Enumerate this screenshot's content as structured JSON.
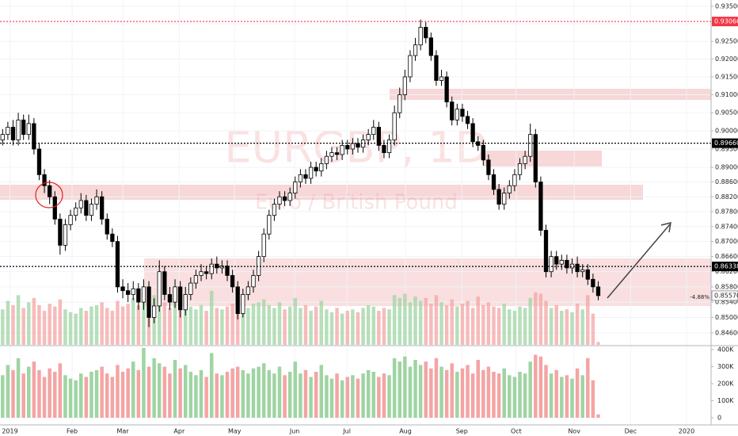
{
  "chart_data": {
    "type": "candlestick",
    "symbol": "EURGBP, 1D",
    "description": "Euro / British Pound",
    "log": true,
    "grid": true,
    "xlim": [
      -0.5,
      135.6
    ],
    "xticks": [
      {
        "value": 1.4,
        "label": "2019"
      },
      {
        "value": 13.3,
        "label": "Feb"
      },
      {
        "value": 23,
        "label": "Mar"
      },
      {
        "value": 33.8,
        "label": "Apr"
      },
      {
        "value": 44.4,
        "label": "May"
      },
      {
        "value": 55.9,
        "label": "Jun"
      },
      {
        "value": 65.9,
        "label": "Jul"
      },
      {
        "value": 77.1,
        "label": "Aug"
      },
      {
        "value": 87.9,
        "label": "Sep"
      },
      {
        "value": 98.3,
        "label": "Oct"
      },
      {
        "value": 109.4,
        "label": "Nov"
      },
      {
        "value": 120.2,
        "label": "Dec"
      },
      {
        "value": 130.9,
        "label": "2020"
      }
    ],
    "ylim": [
      0.8429,
      0.9368
    ],
    "yticks": [
      {
        "value": 0.846,
        "label": "0.84600"
      },
      {
        "value": 0.85,
        "label": "0.85000"
      },
      {
        "value": 0.854,
        "label": "0.85400"
      },
      {
        "value": 0.858,
        "label": "0.85800"
      },
      {
        "value": 0.862,
        "label": "0.86200"
      },
      {
        "value": 0.866,
        "label": "0.86600"
      },
      {
        "value": 0.87,
        "label": "0.87000"
      },
      {
        "value": 0.874,
        "label": "0.87400"
      },
      {
        "value": 0.878,
        "label": "0.87800"
      },
      {
        "value": 0.882,
        "label": "0.88200"
      },
      {
        "value": 0.886,
        "label": "0.88600"
      },
      {
        "value": 0.89,
        "label": "0.89000"
      },
      {
        "value": 0.895,
        "label": "0.89500"
      },
      {
        "value": 0.9,
        "label": "0.90000"
      },
      {
        "value": 0.905,
        "label": "0.90500"
      },
      {
        "value": 0.91,
        "label": "0.91000"
      },
      {
        "value": 0.915,
        "label": "0.91500"
      },
      {
        "value": 0.92,
        "label": "0.92000"
      },
      {
        "value": 0.925,
        "label": "0.92500"
      },
      {
        "value": 0.93,
        "label": "0.93000"
      },
      {
        "value": 0.935,
        "label": "0.93500"
      }
    ],
    "up_color": "#ffffff",
    "down_color": "#000000",
    "volume_up_color": "#9fd4a3",
    "volume_down_color": "#f4a4a4",
    "open": [
      0.8975,
      0.899,
      0.901,
      0.8975,
      0.903,
      0.899,
      0.902,
      0.895,
      0.888,
      0.885,
      0.882,
      0.876,
      0.869,
      0.8745,
      0.877,
      0.879,
      0.881,
      0.877,
      0.88,
      0.882,
      0.876,
      0.872,
      0.87,
      0.858,
      0.857,
      0.856,
      0.8575,
      0.854,
      0.858,
      0.85,
      0.853,
      0.862,
      0.856,
      0.854,
      0.858,
      0.852,
      0.856,
      0.859,
      0.861,
      0.862,
      0.8615,
      0.864,
      0.863,
      0.8635,
      0.861,
      0.858,
      0.851,
      0.856,
      0.858,
      0.861,
      0.866,
      0.872,
      0.877,
      0.88,
      0.882,
      0.881,
      0.883,
      0.886,
      0.888,
      0.887,
      0.89,
      0.889,
      0.891,
      0.893,
      0.894,
      0.8935,
      0.896,
      0.895,
      0.8965,
      0.8955,
      0.8975,
      0.899,
      0.901,
      0.896,
      0.894,
      0.8975,
      0.905,
      0.91,
      0.915,
      0.921,
      0.924,
      0.929,
      0.926,
      0.921,
      0.914,
      0.915,
      0.908,
      0.903,
      0.906,
      0.904,
      0.902,
      0.897,
      0.896,
      0.892,
      0.888,
      0.884,
      0.88,
      0.883,
      0.885,
      0.888,
      0.891,
      0.893,
      0.899,
      0.886,
      0.873,
      0.862,
      0.866,
      0.864,
      0.865,
      0.863,
      0.864,
      0.862,
      0.8625,
      0.86,
      0.858
    ],
    "high": [
      0.9005,
      0.9025,
      0.903,
      0.905,
      0.9045,
      0.9045,
      0.9035,
      0.8965,
      0.8895,
      0.8865,
      0.8835,
      0.8775,
      0.876,
      0.8785,
      0.8805,
      0.883,
      0.8825,
      0.8815,
      0.884,
      0.8835,
      0.8775,
      0.8735,
      0.8715,
      0.86,
      0.859,
      0.8595,
      0.859,
      0.86,
      0.8595,
      0.855,
      0.865,
      0.8635,
      0.858,
      0.86,
      0.8595,
      0.858,
      0.8605,
      0.8625,
      0.864,
      0.8635,
      0.8655,
      0.866,
      0.865,
      0.865,
      0.8625,
      0.8595,
      0.8575,
      0.8595,
      0.8625,
      0.8675,
      0.8735,
      0.8785,
      0.8815,
      0.8835,
      0.8835,
      0.8845,
      0.8875,
      0.8895,
      0.8895,
      0.8915,
      0.8915,
      0.8925,
      0.8945,
      0.8955,
      0.8955,
      0.8975,
      0.8975,
      0.898,
      0.898,
      0.899,
      0.9005,
      0.903,
      0.9025,
      0.8975,
      0.899,
      0.907,
      0.912,
      0.917,
      0.9225,
      0.926,
      0.9312,
      0.9305,
      0.9275,
      0.9225,
      0.917,
      0.9165,
      0.9095,
      0.9075,
      0.9075,
      0.9055,
      0.9035,
      0.8985,
      0.8975,
      0.8935,
      0.8895,
      0.8855,
      0.8845,
      0.8865,
      0.8895,
      0.8925,
      0.8945,
      0.902,
      0.9005,
      0.8875,
      0.8745,
      0.8675,
      0.8675,
      0.8665,
      0.8665,
      0.8655,
      0.866,
      0.864,
      0.864,
      0.8615,
      0.8595
    ],
    "low": [
      0.896,
      0.8975,
      0.896,
      0.896,
      0.8975,
      0.8975,
      0.8935,
      0.8865,
      0.883,
      0.88,
      0.8745,
      0.8665,
      0.8675,
      0.873,
      0.8755,
      0.8775,
      0.8755,
      0.8755,
      0.8785,
      0.8745,
      0.8705,
      0.8685,
      0.8565,
      0.855,
      0.854,
      0.8545,
      0.852,
      0.852,
      0.8475,
      0.8485,
      0.8515,
      0.8545,
      0.852,
      0.8525,
      0.85,
      0.8505,
      0.8545,
      0.8575,
      0.8595,
      0.86,
      0.86,
      0.8615,
      0.8615,
      0.8595,
      0.8565,
      0.8495,
      0.85,
      0.8545,
      0.8565,
      0.8595,
      0.8645,
      0.8705,
      0.8755,
      0.8785,
      0.8795,
      0.8795,
      0.8815,
      0.8845,
      0.8855,
      0.8855,
      0.8875,
      0.8875,
      0.8895,
      0.8915,
      0.892,
      0.892,
      0.8935,
      0.8935,
      0.894,
      0.894,
      0.896,
      0.8975,
      0.8945,
      0.8925,
      0.8925,
      0.896,
      0.9035,
      0.9085,
      0.9135,
      0.9195,
      0.9225,
      0.9245,
      0.9195,
      0.9125,
      0.9125,
      0.9065,
      0.9015,
      0.9015,
      0.9025,
      0.9005,
      0.8955,
      0.8945,
      0.8905,
      0.8865,
      0.8825,
      0.8785,
      0.8785,
      0.8815,
      0.8835,
      0.8865,
      0.8895,
      0.8915,
      0.8845,
      0.8715,
      0.8605,
      0.8605,
      0.8625,
      0.8625,
      0.8615,
      0.8615,
      0.8605,
      0.8605,
      0.8585,
      0.8565,
      0.8545
    ],
    "close": [
      0.899,
      0.901,
      0.8975,
      0.903,
      0.899,
      0.902,
      0.895,
      0.888,
      0.885,
      0.882,
      0.876,
      0.869,
      0.8745,
      0.877,
      0.879,
      0.881,
      0.877,
      0.88,
      0.882,
      0.876,
      0.872,
      0.87,
      0.858,
      0.857,
      0.856,
      0.8575,
      0.854,
      0.858,
      0.85,
      0.853,
      0.862,
      0.856,
      0.854,
      0.858,
      0.852,
      0.856,
      0.859,
      0.861,
      0.862,
      0.8615,
      0.864,
      0.863,
      0.8635,
      0.861,
      0.858,
      0.851,
      0.856,
      0.858,
      0.861,
      0.866,
      0.872,
      0.877,
      0.88,
      0.882,
      0.881,
      0.883,
      0.886,
      0.888,
      0.887,
      0.89,
      0.889,
      0.891,
      0.893,
      0.894,
      0.8935,
      0.896,
      0.895,
      0.8965,
      0.8955,
      0.8975,
      0.899,
      0.901,
      0.896,
      0.894,
      0.8975,
      0.905,
      0.91,
      0.915,
      0.921,
      0.924,
      0.929,
      0.926,
      0.921,
      0.914,
      0.915,
      0.908,
      0.903,
      0.906,
      0.904,
      0.902,
      0.897,
      0.896,
      0.892,
      0.888,
      0.884,
      0.88,
      0.883,
      0.885,
      0.888,
      0.891,
      0.893,
      0.899,
      0.886,
      0.873,
      0.862,
      0.866,
      0.864,
      0.865,
      0.863,
      0.864,
      0.862,
      0.8625,
      0.86,
      0.858,
      0.8557
    ],
    "volume": [
      250000,
      310000,
      280000,
      350000,
      260000,
      300000,
      330000,
      280000,
      240000,
      290000,
      270000,
      320000,
      250000,
      230000,
      220000,
      260000,
      240000,
      270000,
      280000,
      300000,
      260000,
      240000,
      310000,
      270000,
      290000,
      330000,
      280000,
      410000,
      300000,
      350000,
      320000,
      300000,
      260000,
      340000,
      290000,
      310000,
      270000,
      250000,
      280000,
      240000,
      380000,
      260000,
      250000,
      270000,
      290000,
      300000,
      280000,
      260000,
      290000,
      300000,
      320000,
      280000,
      260000,
      300000,
      250000,
      270000,
      330000,
      260000,
      280000,
      240000,
      270000,
      310000,
      250000,
      230000,
      260000,
      220000,
      240000,
      250000,
      230000,
      260000,
      280000,
      270000,
      240000,
      260000,
      250000,
      350000,
      330000,
      360000,
      300000,
      340000,
      310000,
      330000,
      290000,
      350000,
      300000,
      280000,
      320000,
      270000,
      290000,
      310000,
      260000,
      340000,
      280000,
      300000,
      270000,
      260000,
      290000,
      250000,
      240000,
      270000,
      260000,
      330000,
      370000,
      360000,
      310000,
      260000,
      280000,
      240000,
      250000,
      230000,
      290000,
      250000,
      350000,
      220000,
      20000
    ],
    "volume_ylim": [
      0,
      419000
    ],
    "volume_yticks": [
      {
        "value": 0,
        "label": "0"
      },
      {
        "value": 100000,
        "label": "100K"
      },
      {
        "value": 200000,
        "label": "200K"
      },
      {
        "value": 300000,
        "label": "300K"
      },
      {
        "value": 400000,
        "label": "400K"
      }
    ],
    "price_lines": [
      {
        "price": 0.93066,
        "color": "#f23645"
      },
      {
        "price": {
          "value": 0.8966,
          "label": "0.89660"
        },
        "color": "#000000"
      },
      {
        "price": 0.86338,
        "color": "#000000"
      }
    ],
    "last_price": {
      "value": 0.8557,
      "label": "0.85570"
    },
    "change_label": "-4.88%"
  }
}
